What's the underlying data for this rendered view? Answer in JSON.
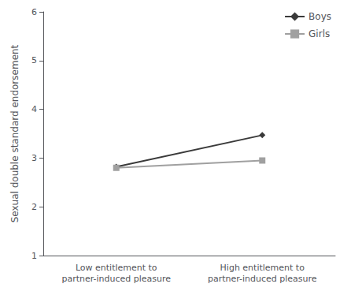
{
  "chart_data": {
    "type": "line",
    "categories": [
      "Low entitlement to\npartner-induced pleasure",
      "High entitlement to\npartner-induced pleasure"
    ],
    "series": [
      {
        "name": "Boys",
        "color": "#3a3a3a",
        "marker": "diamond",
        "values": [
          2.82,
          3.47
        ]
      },
      {
        "name": "Girls",
        "color": "#a0a0a0",
        "marker": "square",
        "values": [
          2.8,
          2.95
        ]
      }
    ],
    "ylabel": "Sexual double standard endorsement",
    "ylim": [
      1,
      6
    ],
    "yticks": [
      1,
      2,
      3,
      4,
      5,
      6
    ],
    "grid": false,
    "legend": "upper right"
  }
}
